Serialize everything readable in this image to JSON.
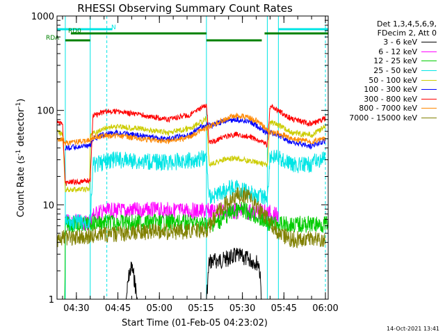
{
  "chart_data": {
    "type": "line",
    "title": "RHESSI Observing Summary Count Rates",
    "xlabel": "Start Time (01-Feb-05 04:23:02)",
    "ylabel_parts": [
      "Count Rate (s",
      "-1",
      " detector",
      "-1",
      ")"
    ],
    "y_scale": "log",
    "ylim": [
      1,
      1000
    ],
    "y_ticks": [
      {
        "value": 1,
        "label": "1"
      },
      {
        "value": 10,
        "label": "10"
      },
      {
        "value": 100,
        "label": "100"
      },
      {
        "value": 1000,
        "label": "1000"
      }
    ],
    "x_units": "minutes after 04:23:02",
    "xlim": [
      0,
      98
    ],
    "x_ticks": [
      {
        "value": 7,
        "label": "04:30"
      },
      {
        "value": 22,
        "label": "04:45"
      },
      {
        "value": 37,
        "label": "05:00"
      },
      {
        "value": 52,
        "label": "05:15"
      },
      {
        "value": 67,
        "label": "05:30"
      },
      {
        "value": 82,
        "label": "05:45"
      },
      {
        "value": 97,
        "label": "06:00"
      }
    ],
    "legend": {
      "header": [
        "Det 1,3,4,5,6,9,",
        "FDecim 2, Att 0"
      ],
      "position": "right"
    },
    "flags": [
      {
        "label": "N",
        "color": "#00e5e5",
        "segments": [
          [
            0,
            20
          ],
          [
            80,
            98
          ]
        ]
      },
      {
        "label": "RD0",
        "color": "#008000",
        "segments": [
          [
            5,
            54
          ],
          [
            75,
            98
          ]
        ]
      },
      {
        "label": "RDA",
        "color": "#008000",
        "segments": [
          [
            3,
            12
          ],
          [
            54,
            74
          ]
        ]
      }
    ],
    "vertical_lines": [
      {
        "x": 3,
        "color": "#00e5e5",
        "style": "solid"
      },
      {
        "x": 12,
        "color": "#00e5e5",
        "style": "solid"
      },
      {
        "x": 18,
        "color": "#00e5e5",
        "style": "dashed"
      },
      {
        "x": 54,
        "color": "#00e5e5",
        "style": "solid"
      },
      {
        "x": 76,
        "color": "#00e5e5",
        "style": "solid"
      },
      {
        "x": 80,
        "color": "#00e5e5",
        "style": "solid"
      },
      {
        "x": 97,
        "color": "#00e5e5",
        "style": "dashed"
      }
    ],
    "series": [
      {
        "name": "3 - 6 keV",
        "color": "#000000",
        "points": [
          [
            0,
            1
          ],
          [
            25,
            1
          ],
          [
            26,
            1.8
          ],
          [
            27,
            2.2
          ],
          [
            28,
            1.6
          ],
          [
            29,
            1
          ],
          [
            54,
            1
          ],
          [
            55,
            2.5
          ],
          [
            60,
            2.6
          ],
          [
            65,
            2.9
          ],
          [
            70,
            2.6
          ],
          [
            73,
            2.4
          ],
          [
            74,
            1
          ],
          [
            98,
            1
          ]
        ]
      },
      {
        "name": "6 - 12 keV",
        "color": "#ff00ff",
        "points": [
          [
            3,
            6.5
          ],
          [
            12,
            6.5
          ],
          [
            13,
            7.8
          ],
          [
            15,
            8.3
          ],
          [
            20,
            8.6
          ],
          [
            30,
            8.7
          ],
          [
            40,
            8.7
          ],
          [
            50,
            8.6
          ],
          [
            54,
            8.5
          ],
          [
            60,
            8.6
          ],
          [
            70,
            8.5
          ],
          [
            76,
            8.4
          ],
          [
            80,
            7.5
          ]
        ]
      },
      {
        "name": "12 - 25 keV",
        "color": "#00cc00",
        "points": [
          [
            0,
            1
          ],
          [
            2.8,
            1
          ],
          [
            3,
            6.2
          ],
          [
            12,
            6.2
          ],
          [
            13,
            6.5
          ],
          [
            20,
            6.5
          ],
          [
            30,
            6.5
          ],
          [
            40,
            6.5
          ],
          [
            50,
            6.4
          ],
          [
            54,
            6.2
          ],
          [
            58,
            6.5
          ],
          [
            63,
            8.4
          ],
          [
            67,
            8.8
          ],
          [
            70,
            8.2
          ],
          [
            74,
            6.8
          ],
          [
            78,
            6.2
          ],
          [
            98,
            6.2
          ]
        ]
      },
      {
        "name": "25 - 50 keV",
        "color": "#00e5e5",
        "points": [
          [
            3,
            6.5
          ],
          [
            12,
            6.5
          ],
          [
            13,
            26
          ],
          [
            20,
            30
          ],
          [
            30,
            29
          ],
          [
            40,
            28
          ],
          [
            50,
            30
          ],
          [
            54,
            32
          ],
          [
            55,
            12
          ],
          [
            58,
            13
          ],
          [
            62,
            15
          ],
          [
            65,
            15
          ],
          [
            69,
            14
          ],
          [
            72,
            12.5
          ],
          [
            76,
            12
          ],
          [
            77,
            33
          ],
          [
            80,
            31
          ],
          [
            85,
            27
          ],
          [
            90,
            26
          ],
          [
            95,
            30
          ],
          [
            97,
            31
          ]
        ]
      },
      {
        "name": "50 - 100 keV",
        "color": "#cccc00",
        "points": [
          [
            0,
            58
          ],
          [
            2,
            57
          ],
          [
            3,
            14.5
          ],
          [
            11.8,
            14.5
          ],
          [
            12,
            55
          ],
          [
            18,
            66
          ],
          [
            22,
            68
          ],
          [
            30,
            64
          ],
          [
            40,
            58
          ],
          [
            48,
            64
          ],
          [
            53,
            78
          ],
          [
            54,
            82
          ],
          [
            55,
            27
          ],
          [
            60,
            30
          ],
          [
            65,
            31
          ],
          [
            70,
            29
          ],
          [
            75,
            27
          ],
          [
            76,
            26
          ],
          [
            77,
            76
          ],
          [
            80,
            70
          ],
          [
            85,
            58
          ],
          [
            92,
            55
          ],
          [
            97,
            68
          ]
        ]
      },
      {
        "name": "100 - 300 keV",
        "color": "#0000ff",
        "points": [
          [
            3,
            40
          ],
          [
            12,
            42
          ],
          [
            13,
            50
          ],
          [
            18,
            57
          ],
          [
            22,
            58
          ],
          [
            30,
            54
          ],
          [
            40,
            50
          ],
          [
            48,
            55
          ],
          [
            52,
            67
          ],
          [
            54,
            70
          ],
          [
            56,
            68
          ],
          [
            60,
            77
          ],
          [
            65,
            80
          ],
          [
            70,
            75
          ],
          [
            75,
            60
          ],
          [
            77,
            58
          ],
          [
            80,
            55
          ],
          [
            85,
            45
          ],
          [
            92,
            42
          ],
          [
            97,
            48
          ]
        ]
      },
      {
        "name": "300 - 800 keV",
        "color": "#ff0000",
        "points": [
          [
            0,
            75
          ],
          [
            2,
            72
          ],
          [
            3,
            17
          ],
          [
            12,
            18
          ],
          [
            13,
            88
          ],
          [
            18,
            98
          ],
          [
            22,
            97
          ],
          [
            30,
            90
          ],
          [
            40,
            80
          ],
          [
            48,
            90
          ],
          [
            53,
            110
          ],
          [
            54,
            118
          ],
          [
            55,
            45
          ],
          [
            60,
            52
          ],
          [
            65,
            56
          ],
          [
            70,
            52
          ],
          [
            75,
            45
          ],
          [
            76,
            42
          ],
          [
            77,
            110
          ],
          [
            80,
            100
          ],
          [
            85,
            80
          ],
          [
            92,
            72
          ],
          [
            97,
            82
          ]
        ]
      },
      {
        "name": "800 - 7000 keV",
        "color": "#ff8800",
        "points": [
          [
            0,
            50
          ],
          [
            2,
            50
          ],
          [
            3,
            45
          ],
          [
            11,
            48
          ],
          [
            12,
            48
          ],
          [
            13,
            52
          ],
          [
            18,
            54
          ],
          [
            22,
            54
          ],
          [
            30,
            50
          ],
          [
            40,
            47
          ],
          [
            48,
            52
          ],
          [
            52,
            62
          ],
          [
            54,
            64
          ],
          [
            58,
            75
          ],
          [
            63,
            86
          ],
          [
            67,
            88
          ],
          [
            72,
            78
          ],
          [
            76,
            62
          ],
          [
            77,
            58
          ],
          [
            80,
            57
          ],
          [
            85,
            50
          ],
          [
            92,
            47
          ],
          [
            97,
            50
          ]
        ]
      },
      {
        "name": "7000 - 15000 keV",
        "color": "#808000",
        "points": [
          [
            0,
            4
          ],
          [
            3,
            4.5
          ],
          [
            10,
            4.6
          ],
          [
            15,
            5
          ],
          [
            20,
            4.8
          ],
          [
            25,
            5
          ],
          [
            30,
            5.2
          ],
          [
            40,
            5.2
          ],
          [
            50,
            5.2
          ],
          [
            54,
            5.4
          ],
          [
            58,
            8
          ],
          [
            62,
            11
          ],
          [
            65,
            12.5
          ],
          [
            68,
            12.5
          ],
          [
            72,
            10
          ],
          [
            76,
            7
          ],
          [
            80,
            5
          ],
          [
            85,
            4.3
          ],
          [
            90,
            4.3
          ],
          [
            97,
            4.4
          ]
        ]
      }
    ]
  },
  "footer": "14-Oct-2021 13:41"
}
